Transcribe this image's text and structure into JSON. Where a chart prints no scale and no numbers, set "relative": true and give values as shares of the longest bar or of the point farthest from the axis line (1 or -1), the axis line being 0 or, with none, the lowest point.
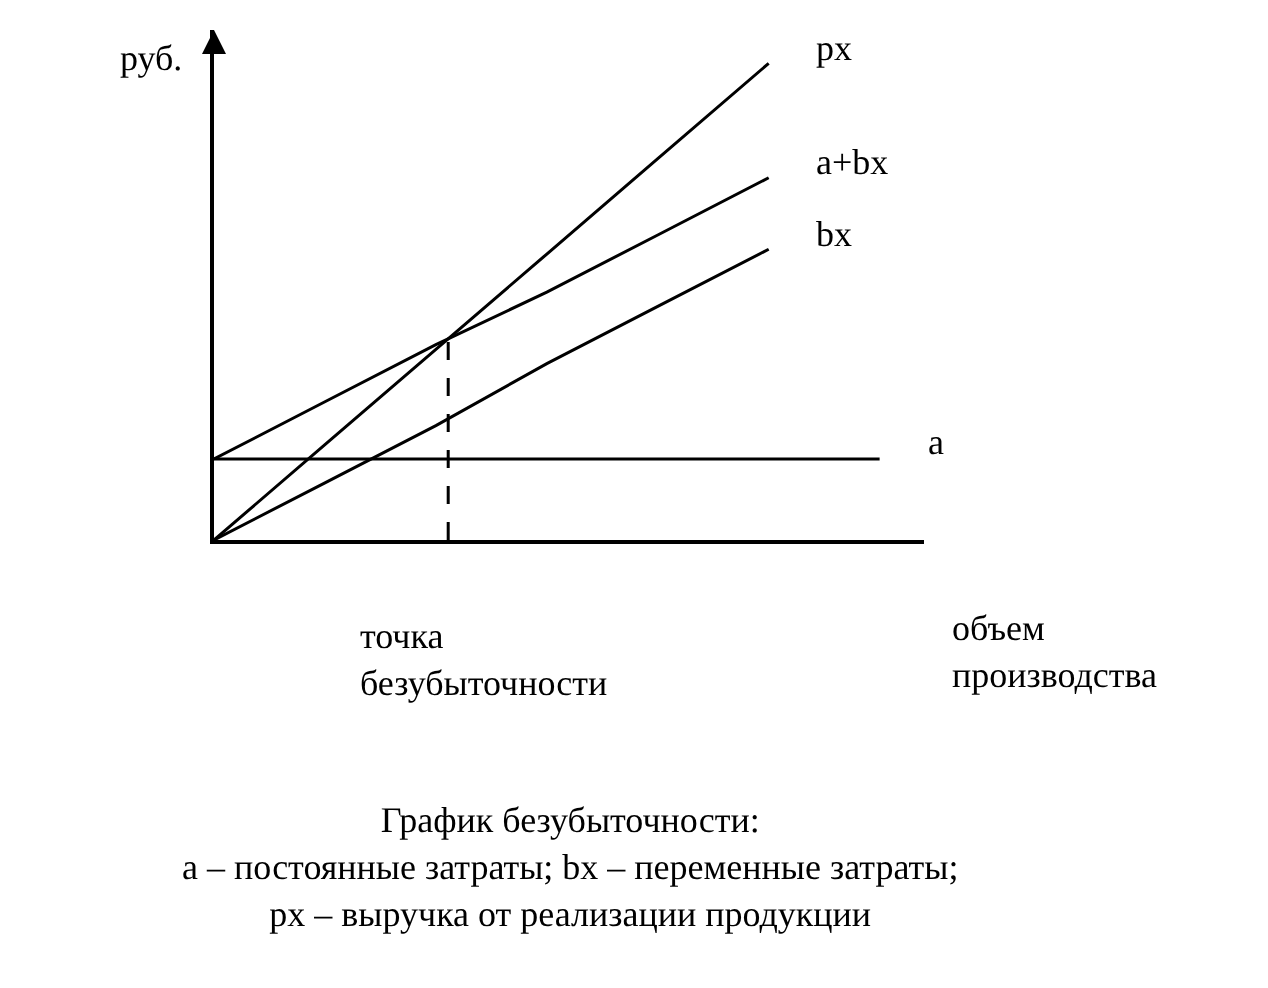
{
  "chart_data": {
    "type": "line",
    "relative": true,
    "title": "График безубыточности:",
    "subtitle": "a – постоянные затраты; bx – переменные затраты;\npx – выручка от реализации продукции",
    "ylabel": "руб.",
    "xlabel": "объем\nпроизводства",
    "categories": [
      null,
      null,
      null,
      null,
      null,
      null,
      null
    ],
    "legend": false,
    "marker": "none",
    "series": [
      {
        "name": "px",
        "color": "#000000",
        "values": [
          0,
          0.2,
          0.4,
          0.6,
          0.8,
          1.0,
          null
        ]
      },
      {
        "name": "a+bx",
        "color": "#000000",
        "values": [
          0.17,
          0.29,
          0.41,
          0.52,
          0.64,
          0.76,
          null
        ]
      },
      {
        "name": "bx",
        "color": "#000000",
        "values": [
          0,
          0.12,
          0.24,
          0.37,
          0.49,
          0.61,
          null
        ]
      },
      {
        "name": "a",
        "color": "#000000",
        "values": [
          0.17,
          0.17,
          0.17,
          0.17,
          0.17,
          0.17,
          0.17
        ]
      }
    ],
    "annotations": [
      "точка\nбезубыточности"
    ]
  }
}
